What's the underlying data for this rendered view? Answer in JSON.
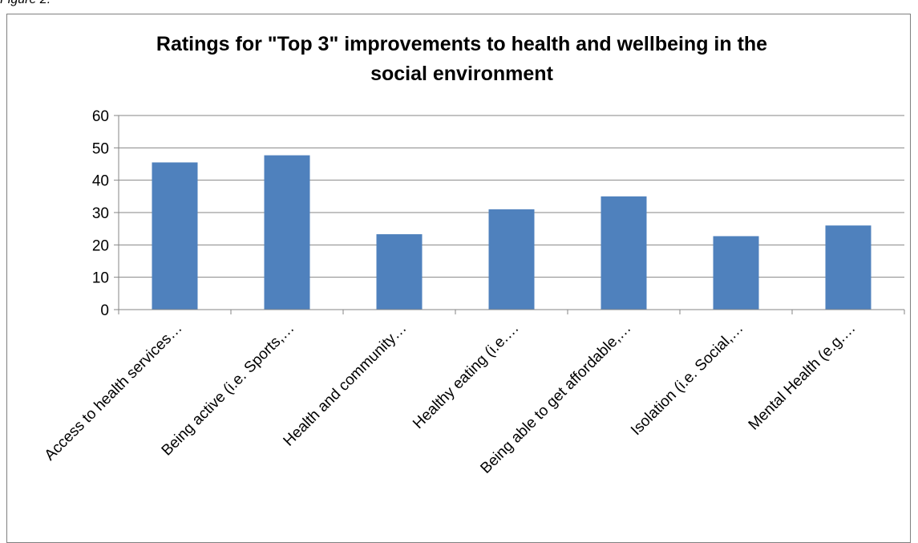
{
  "figure_caption": "Figure 2.",
  "colors": {
    "bar": "#4f81bd",
    "grid": "#868686",
    "axis": "#868686",
    "frame": "#7f7f7f"
  },
  "chart_data": {
    "type": "bar",
    "title_lines": [
      "Ratings for \"Top 3\" improvements to health and wellbeing in the",
      "social environment"
    ],
    "categories": [
      "Access to health services…",
      "Being active (i.e. Sports,…",
      "Health and community…",
      "Healthy eating (i.e.…",
      "Being able to get affordable,…",
      "Isolation (i.e. Social,…",
      "Mental Health (e.g.…"
    ],
    "values": [
      45.5,
      47.7,
      23.3,
      31.0,
      35.0,
      22.7,
      26.0
    ],
    "ylim": [
      0,
      60
    ],
    "yticks": [
      0,
      10,
      20,
      30,
      40,
      50,
      60
    ],
    "grid": true,
    "legend": "none"
  }
}
